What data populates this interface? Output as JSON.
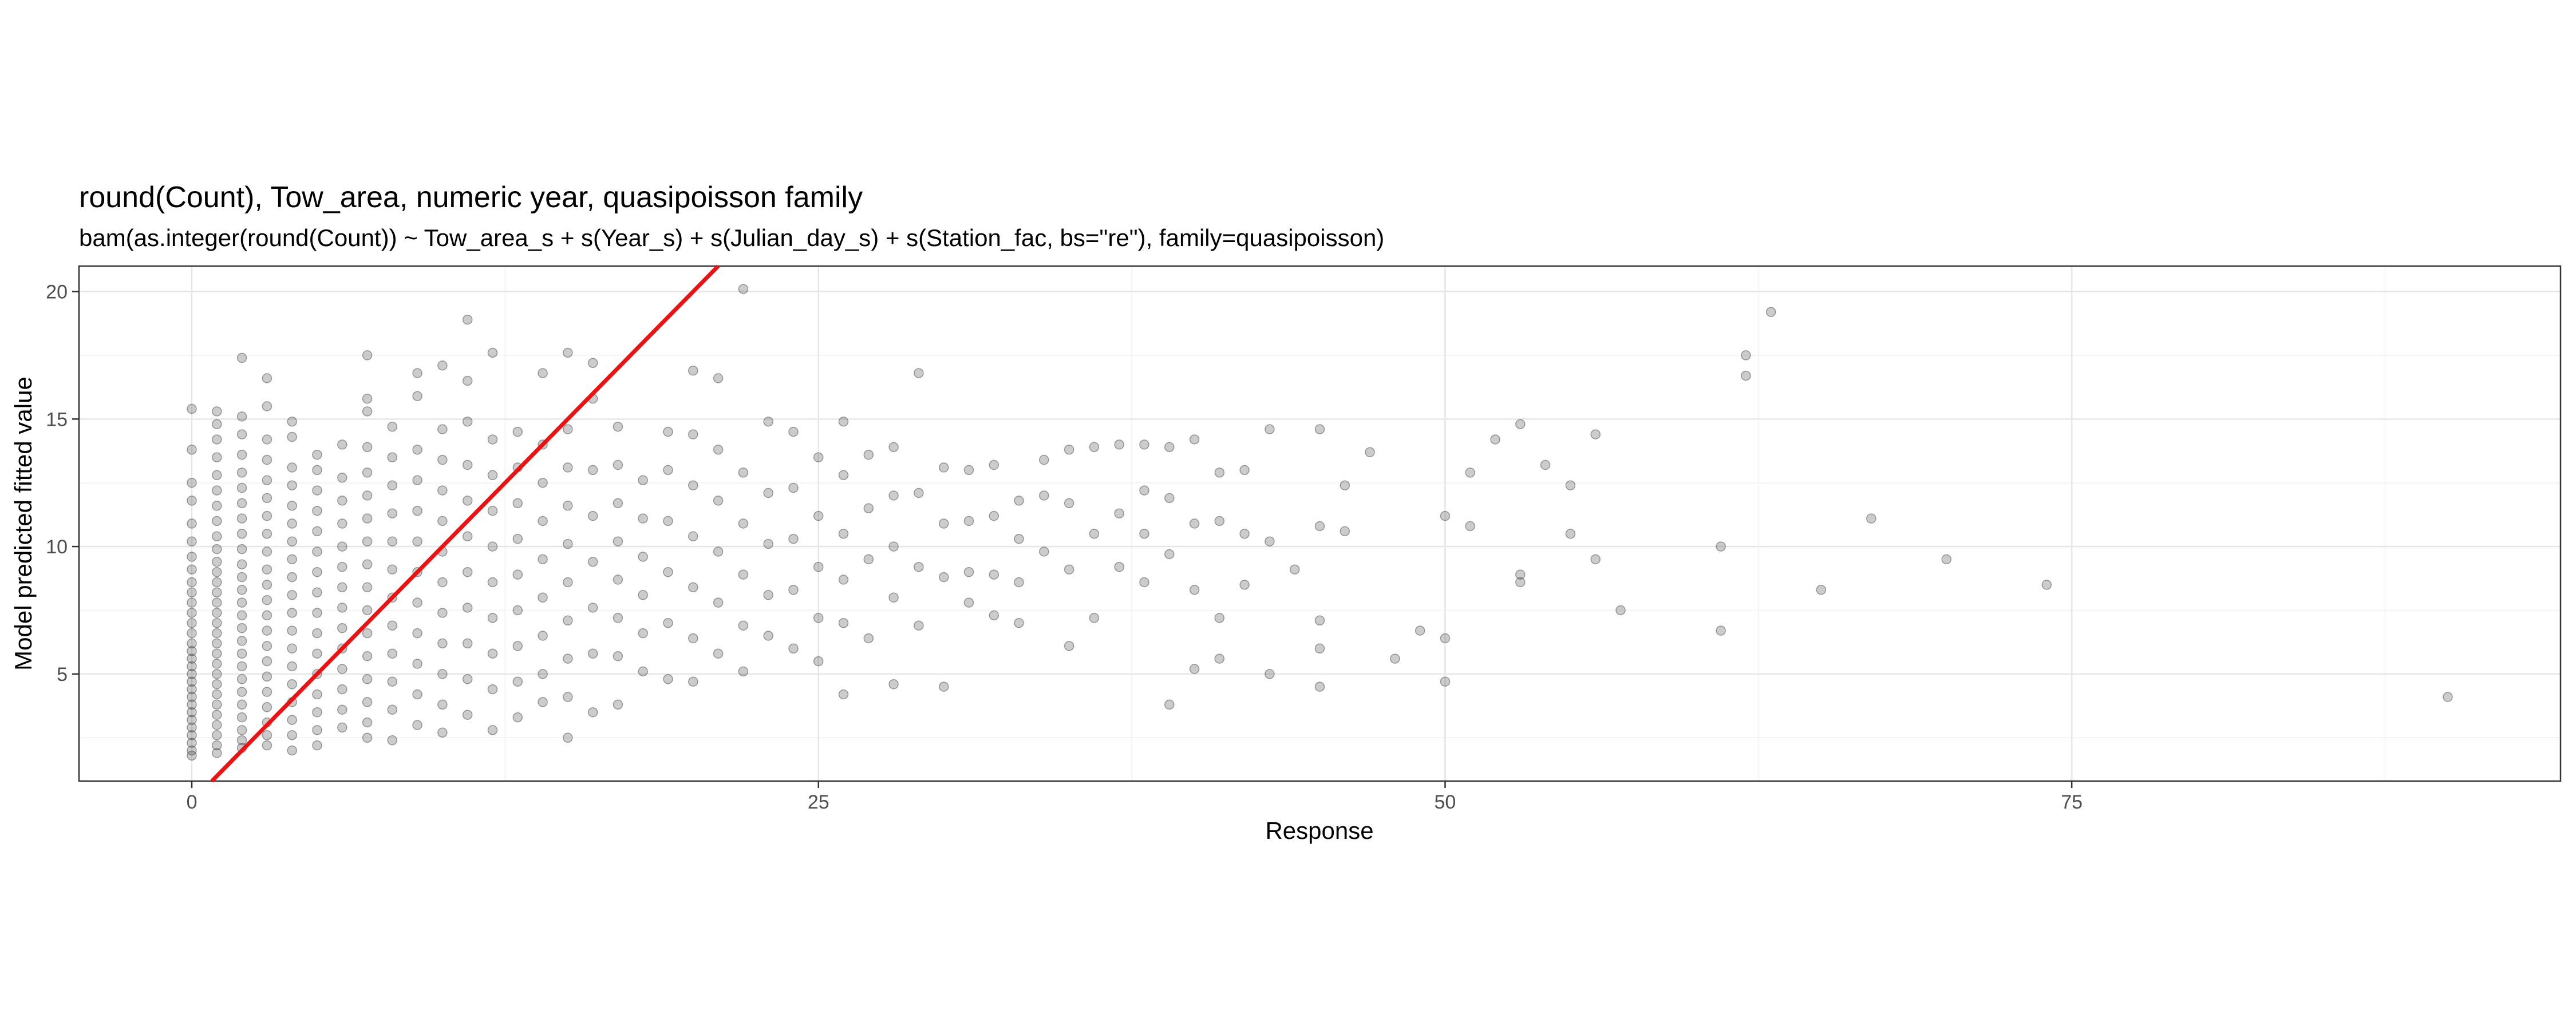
{
  "chart_data": {
    "type": "scatter",
    "title": "round(Count), Tow_area, numeric year, quasipoisson family",
    "subtitle": "bam(as.integer(round(Count)) ~ Tow_area_s + s(Year_s) + s(Julian_day_s) + s(Station_fac, bs=\"re\"), family=quasipoisson)",
    "xlabel": "Response",
    "ylabel": "Model predicted fitted value",
    "xlim": [
      -4.5,
      94.5
    ],
    "ylim": [
      0.8,
      21.0
    ],
    "x_ticks": [
      0,
      25,
      50,
      75
    ],
    "x_tick_labels": [
      "0",
      "25",
      "50",
      "75"
    ],
    "y_ticks": [
      5,
      10,
      15,
      20
    ],
    "y_tick_labels": [
      "5",
      "10",
      "15",
      "20"
    ],
    "grid": true,
    "point_color": "#333333",
    "point_opacity": 0.25,
    "reference_line": {
      "slope": 1,
      "intercept": 0,
      "color": "#ee1111"
    },
    "points": [
      [
        0,
        15.4
      ],
      [
        0,
        13.8
      ],
      [
        0,
        12.5
      ],
      [
        0,
        11.8
      ],
      [
        0,
        10.9
      ],
      [
        0,
        10.2
      ],
      [
        0,
        9.6
      ],
      [
        0,
        9.1
      ],
      [
        0,
        8.6
      ],
      [
        0,
        8.2
      ],
      [
        0,
        7.8
      ],
      [
        0,
        7.4
      ],
      [
        0,
        7.0
      ],
      [
        0,
        6.6
      ],
      [
        0,
        6.2
      ],
      [
        0,
        5.9
      ],
      [
        0,
        5.6
      ],
      [
        0,
        5.3
      ],
      [
        0,
        5.0
      ],
      [
        0,
        4.7
      ],
      [
        0,
        4.4
      ],
      [
        0,
        4.1
      ],
      [
        0,
        3.8
      ],
      [
        0,
        3.5
      ],
      [
        0,
        3.2
      ],
      [
        0,
        2.9
      ],
      [
        0,
        2.6
      ],
      [
        0,
        2.3
      ],
      [
        0,
        2.0
      ],
      [
        0,
        1.8
      ],
      [
        1,
        15.3
      ],
      [
        1,
        14.8
      ],
      [
        1,
        14.2
      ],
      [
        1,
        13.5
      ],
      [
        1,
        12.8
      ],
      [
        1,
        12.2
      ],
      [
        1,
        11.6
      ],
      [
        1,
        11.0
      ],
      [
        1,
        10.4
      ],
      [
        1,
        9.9
      ],
      [
        1,
        9.4
      ],
      [
        1,
        9.0
      ],
      [
        1,
        8.6
      ],
      [
        1,
        8.2
      ],
      [
        1,
        7.8
      ],
      [
        1,
        7.4
      ],
      [
        1,
        7.0
      ],
      [
        1,
        6.6
      ],
      [
        1,
        6.2
      ],
      [
        1,
        5.8
      ],
      [
        1,
        5.4
      ],
      [
        1,
        5.0
      ],
      [
        1,
        4.6
      ],
      [
        1,
        4.2
      ],
      [
        1,
        3.8
      ],
      [
        1,
        3.4
      ],
      [
        1,
        3.0
      ],
      [
        1,
        2.6
      ],
      [
        1,
        2.2
      ],
      [
        1,
        1.9
      ],
      [
        2,
        17.4
      ],
      [
        2,
        15.1
      ],
      [
        2,
        14.4
      ],
      [
        2,
        13.6
      ],
      [
        2,
        12.9
      ],
      [
        2,
        12.3
      ],
      [
        2,
        11.7
      ],
      [
        2,
        11.1
      ],
      [
        2,
        10.5
      ],
      [
        2,
        9.9
      ],
      [
        2,
        9.3
      ],
      [
        2,
        8.8
      ],
      [
        2,
        8.3
      ],
      [
        2,
        7.8
      ],
      [
        2,
        7.3
      ],
      [
        2,
        6.8
      ],
      [
        2,
        6.3
      ],
      [
        2,
        5.8
      ],
      [
        2,
        5.3
      ],
      [
        2,
        4.8
      ],
      [
        2,
        4.3
      ],
      [
        2,
        3.8
      ],
      [
        2,
        3.3
      ],
      [
        2,
        2.8
      ],
      [
        2,
        2.4
      ],
      [
        2,
        2.1
      ],
      [
        3,
        16.6
      ],
      [
        3,
        15.5
      ],
      [
        3,
        14.2
      ],
      [
        3,
        13.4
      ],
      [
        3,
        12.6
      ],
      [
        3,
        11.9
      ],
      [
        3,
        11.2
      ],
      [
        3,
        10.5
      ],
      [
        3,
        9.8
      ],
      [
        3,
        9.1
      ],
      [
        3,
        8.5
      ],
      [
        3,
        7.9
      ],
      [
        3,
        7.3
      ],
      [
        3,
        6.7
      ],
      [
        3,
        6.1
      ],
      [
        3,
        5.5
      ],
      [
        3,
        4.9
      ],
      [
        3,
        4.3
      ],
      [
        3,
        3.7
      ],
      [
        3,
        3.1
      ],
      [
        3,
        2.6
      ],
      [
        3,
        2.2
      ],
      [
        4,
        14.9
      ],
      [
        4,
        14.3
      ],
      [
        4,
        13.1
      ],
      [
        4,
        12.4
      ],
      [
        4,
        11.6
      ],
      [
        4,
        10.9
      ],
      [
        4,
        10.2
      ],
      [
        4,
        9.5
      ],
      [
        4,
        8.8
      ],
      [
        4,
        8.1
      ],
      [
        4,
        7.4
      ],
      [
        4,
        6.7
      ],
      [
        4,
        6.0
      ],
      [
        4,
        5.3
      ],
      [
        4,
        4.6
      ],
      [
        4,
        3.9
      ],
      [
        4,
        3.2
      ],
      [
        4,
        2.6
      ],
      [
        4,
        2.0
      ],
      [
        5,
        13.6
      ],
      [
        5,
        13.0
      ],
      [
        5,
        12.2
      ],
      [
        5,
        11.4
      ],
      [
        5,
        10.6
      ],
      [
        5,
        9.8
      ],
      [
        5,
        9.0
      ],
      [
        5,
        8.2
      ],
      [
        5,
        7.4
      ],
      [
        5,
        6.6
      ],
      [
        5,
        5.8
      ],
      [
        5,
        5.0
      ],
      [
        5,
        4.2
      ],
      [
        5,
        3.5
      ],
      [
        5,
        2.8
      ],
      [
        5,
        2.2
      ],
      [
        6,
        14.0
      ],
      [
        6,
        12.7
      ],
      [
        6,
        11.8
      ],
      [
        6,
        10.9
      ],
      [
        6,
        10.0
      ],
      [
        6,
        9.2
      ],
      [
        6,
        8.4
      ],
      [
        6,
        7.6
      ],
      [
        6,
        6.8
      ],
      [
        6,
        6.0
      ],
      [
        6,
        5.2
      ],
      [
        6,
        4.4
      ],
      [
        6,
        3.6
      ],
      [
        6,
        2.9
      ],
      [
        7,
        17.5
      ],
      [
        7,
        15.8
      ],
      [
        7,
        15.3
      ],
      [
        7,
        13.9
      ],
      [
        7,
        12.9
      ],
      [
        7,
        12.0
      ],
      [
        7,
        11.1
      ],
      [
        7,
        10.2
      ],
      [
        7,
        9.3
      ],
      [
        7,
        8.4
      ],
      [
        7,
        7.5
      ],
      [
        7,
        6.6
      ],
      [
        7,
        5.7
      ],
      [
        7,
        4.8
      ],
      [
        7,
        3.9
      ],
      [
        7,
        3.1
      ],
      [
        7,
        2.5
      ],
      [
        8,
        14.7
      ],
      [
        8,
        13.5
      ],
      [
        8,
        12.4
      ],
      [
        8,
        11.3
      ],
      [
        8,
        10.2
      ],
      [
        8,
        9.1
      ],
      [
        8,
        8.0
      ],
      [
        8,
        6.9
      ],
      [
        8,
        5.8
      ],
      [
        8,
        4.7
      ],
      [
        8,
        3.6
      ],
      [
        8,
        2.4
      ],
      [
        9,
        16.8
      ],
      [
        9,
        15.9
      ],
      [
        9,
        13.8
      ],
      [
        9,
        12.6
      ],
      [
        9,
        11.4
      ],
      [
        9,
        10.2
      ],
      [
        9,
        9.0
      ],
      [
        9,
        7.8
      ],
      [
        9,
        6.6
      ],
      [
        9,
        5.4
      ],
      [
        9,
        4.2
      ],
      [
        9,
        3.0
      ],
      [
        10,
        17.1
      ],
      [
        10,
        14.6
      ],
      [
        10,
        13.4
      ],
      [
        10,
        12.2
      ],
      [
        10,
        11.0
      ],
      [
        10,
        9.8
      ],
      [
        10,
        8.6
      ],
      [
        10,
        7.4
      ],
      [
        10,
        6.2
      ],
      [
        10,
        5.0
      ],
      [
        10,
        3.8
      ],
      [
        10,
        2.7
      ],
      [
        11,
        18.9
      ],
      [
        11,
        16.5
      ],
      [
        11,
        14.9
      ],
      [
        11,
        13.2
      ],
      [
        11,
        11.8
      ],
      [
        11,
        10.4
      ],
      [
        11,
        9.0
      ],
      [
        11,
        7.6
      ],
      [
        11,
        6.2
      ],
      [
        11,
        4.8
      ],
      [
        11,
        3.4
      ],
      [
        12,
        17.6
      ],
      [
        12,
        14.2
      ],
      [
        12,
        12.8
      ],
      [
        12,
        11.4
      ],
      [
        12,
        10.0
      ],
      [
        12,
        8.6
      ],
      [
        12,
        7.2
      ],
      [
        12,
        5.8
      ],
      [
        12,
        4.4
      ],
      [
        12,
        2.8
      ],
      [
        13,
        14.5
      ],
      [
        13,
        13.1
      ],
      [
        13,
        11.7
      ],
      [
        13,
        10.3
      ],
      [
        13,
        8.9
      ],
      [
        13,
        7.5
      ],
      [
        13,
        6.1
      ],
      [
        13,
        4.7
      ],
      [
        13,
        3.3
      ],
      [
        14,
        16.8
      ],
      [
        14,
        14.0
      ],
      [
        14,
        12.5
      ],
      [
        14,
        11.0
      ],
      [
        14,
        9.5
      ],
      [
        14,
        8.0
      ],
      [
        14,
        6.5
      ],
      [
        14,
        5.0
      ],
      [
        14,
        3.9
      ],
      [
        15,
        17.6
      ],
      [
        15,
        14.6
      ],
      [
        15,
        13.1
      ],
      [
        15,
        11.6
      ],
      [
        15,
        10.1
      ],
      [
        15,
        8.6
      ],
      [
        15,
        7.1
      ],
      [
        15,
        5.6
      ],
      [
        15,
        4.1
      ],
      [
        15,
        2.5
      ],
      [
        16,
        17.2
      ],
      [
        16,
        15.8
      ],
      [
        16,
        13.0
      ],
      [
        16,
        11.2
      ],
      [
        16,
        9.4
      ],
      [
        16,
        7.6
      ],
      [
        16,
        5.8
      ],
      [
        16,
        3.5
      ],
      [
        17,
        14.7
      ],
      [
        17,
        13.2
      ],
      [
        17,
        11.7
      ],
      [
        17,
        10.2
      ],
      [
        17,
        8.7
      ],
      [
        17,
        7.2
      ],
      [
        17,
        5.7
      ],
      [
        17,
        3.8
      ],
      [
        18,
        12.6
      ],
      [
        18,
        11.1
      ],
      [
        18,
        9.6
      ],
      [
        18,
        8.1
      ],
      [
        18,
        6.6
      ],
      [
        18,
        5.1
      ],
      [
        19,
        14.5
      ],
      [
        19,
        13.0
      ],
      [
        19,
        11.0
      ],
      [
        19,
        9.0
      ],
      [
        19,
        7.0
      ],
      [
        19,
        4.8
      ],
      [
        20,
        16.9
      ],
      [
        20,
        14.4
      ],
      [
        20,
        12.4
      ],
      [
        20,
        10.4
      ],
      [
        20,
        8.4
      ],
      [
        20,
        6.4
      ],
      [
        20,
        4.7
      ],
      [
        21,
        16.6
      ],
      [
        21,
        13.8
      ],
      [
        21,
        11.8
      ],
      [
        21,
        9.8
      ],
      [
        21,
        7.8
      ],
      [
        21,
        5.8
      ],
      [
        22,
        20.1
      ],
      [
        22,
        12.9
      ],
      [
        22,
        10.9
      ],
      [
        22,
        8.9
      ],
      [
        22,
        6.9
      ],
      [
        22,
        5.1
      ],
      [
        23,
        14.9
      ],
      [
        23,
        12.1
      ],
      [
        23,
        10.1
      ],
      [
        23,
        8.1
      ],
      [
        23,
        6.5
      ],
      [
        24,
        14.5
      ],
      [
        24,
        12.3
      ],
      [
        24,
        10.3
      ],
      [
        24,
        8.3
      ],
      [
        24,
        6.0
      ],
      [
        25,
        13.5
      ],
      [
        25,
        11.2
      ],
      [
        25,
        9.2
      ],
      [
        25,
        7.2
      ],
      [
        25,
        5.5
      ],
      [
        26,
        14.9
      ],
      [
        26,
        12.8
      ],
      [
        26,
        10.5
      ],
      [
        26,
        8.7
      ],
      [
        26,
        7.0
      ],
      [
        26,
        4.2
      ],
      [
        27,
        13.6
      ],
      [
        27,
        11.5
      ],
      [
        27,
        9.5
      ],
      [
        27,
        6.4
      ],
      [
        28,
        13.9
      ],
      [
        28,
        12.0
      ],
      [
        28,
        10.0
      ],
      [
        28,
        8.0
      ],
      [
        28,
        4.6
      ],
      [
        29,
        16.8
      ],
      [
        29,
        12.1
      ],
      [
        29,
        9.2
      ],
      [
        29,
        6.9
      ],
      [
        30,
        13.1
      ],
      [
        30,
        10.9
      ],
      [
        30,
        8.8
      ],
      [
        30,
        4.5
      ],
      [
        31,
        13.0
      ],
      [
        31,
        11.0
      ],
      [
        31,
        9.0
      ],
      [
        31,
        7.8
      ],
      [
        32,
        13.2
      ],
      [
        32,
        11.2
      ],
      [
        32,
        8.9
      ],
      [
        32,
        7.3
      ],
      [
        33,
        11.8
      ],
      [
        33,
        10.3
      ],
      [
        33,
        8.6
      ],
      [
        33,
        7.0
      ],
      [
        34,
        13.4
      ],
      [
        34,
        12.0
      ],
      [
        34,
        9.8
      ],
      [
        35,
        13.8
      ],
      [
        35,
        11.7
      ],
      [
        35,
        9.1
      ],
      [
        35,
        6.1
      ],
      [
        36,
        13.9
      ],
      [
        36,
        10.5
      ],
      [
        36,
        7.2
      ],
      [
        37,
        14.0
      ],
      [
        37,
        11.3
      ],
      [
        37,
        9.2
      ],
      [
        38,
        14.0
      ],
      [
        38,
        12.2
      ],
      [
        38,
        10.5
      ],
      [
        38,
        8.6
      ],
      [
        39,
        13.9
      ],
      [
        39,
        11.9
      ],
      [
        39,
        9.7
      ],
      [
        39,
        3.8
      ],
      [
        40,
        14.2
      ],
      [
        40,
        10.9
      ],
      [
        40,
        8.3
      ],
      [
        40,
        5.2
      ],
      [
        41,
        12.9
      ],
      [
        41,
        11.0
      ],
      [
        41,
        7.2
      ],
      [
        41,
        5.6
      ],
      [
        42,
        13.0
      ],
      [
        42,
        10.5
      ],
      [
        42,
        8.5
      ],
      [
        43,
        14.6
      ],
      [
        43,
        10.2
      ],
      [
        43,
        5.0
      ],
      [
        44,
        9.1
      ],
      [
        45,
        14.6
      ],
      [
        45,
        10.8
      ],
      [
        45,
        7.1
      ],
      [
        45,
        6.0
      ],
      [
        45,
        4.5
      ],
      [
        46,
        12.4
      ],
      [
        46,
        10.6
      ],
      [
        47,
        13.7
      ],
      [
        48,
        5.6
      ],
      [
        49,
        6.7
      ],
      [
        50,
        11.2
      ],
      [
        50,
        6.4
      ],
      [
        50,
        4.7
      ],
      [
        51,
        12.9
      ],
      [
        51,
        10.8
      ],
      [
        52,
        14.2
      ],
      [
        53,
        14.8
      ],
      [
        53,
        8.9
      ],
      [
        53,
        8.6
      ],
      [
        54,
        13.2
      ],
      [
        55,
        12.4
      ],
      [
        55,
        10.5
      ],
      [
        56,
        14.4
      ],
      [
        56,
        9.5
      ],
      [
        57,
        7.5
      ],
      [
        61,
        10.0
      ],
      [
        61,
        6.7
      ],
      [
        62,
        17.5
      ],
      [
        62,
        16.7
      ],
      [
        63,
        19.2
      ],
      [
        65,
        8.3
      ],
      [
        67,
        11.1
      ],
      [
        70,
        9.5
      ],
      [
        74,
        8.5
      ],
      [
        90,
        4.1
      ]
    ]
  }
}
